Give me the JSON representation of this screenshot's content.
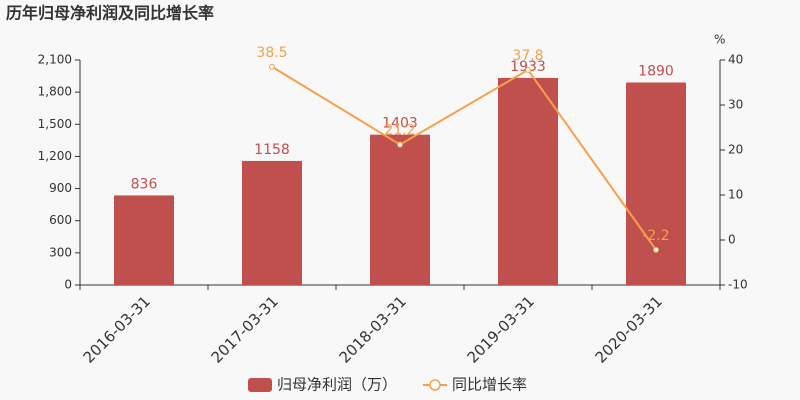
{
  "chart_data": {
    "type": "bar",
    "title": "历年归母净利润及同比增长率",
    "categories": [
      "2016-03-31",
      "2017-03-31",
      "2018-03-31",
      "2019-03-31",
      "2020-03-31"
    ],
    "series": [
      {
        "name": "归母净利润（万）",
        "type": "bar",
        "color": "#c0504d",
        "values": [
          836,
          1158,
          1403,
          1933,
          1890
        ]
      },
      {
        "name": "同比增长率",
        "type": "line",
        "axis": "y2",
        "color": "#f5a04a",
        "values": [
          null,
          38.5,
          21.2,
          37.8,
          -2.2
        ]
      }
    ],
    "ylim": [
      0,
      2100
    ],
    "yticks": [
      0,
      300,
      600,
      900,
      {
        "value": 1200,
        "label": "1,200"
      },
      {
        "value": 1500,
        "label": "1,500"
      },
      {
        "value": 1800,
        "label": "1,800"
      },
      {
        "value": 2100,
        "label": "2,100"
      }
    ],
    "y2label": "%",
    "y2lim": [
      -10,
      40
    ],
    "y2ticks": [
      -10,
      0,
      10,
      20,
      30,
      40
    ],
    "grid": false,
    "legend": "bottom"
  }
}
